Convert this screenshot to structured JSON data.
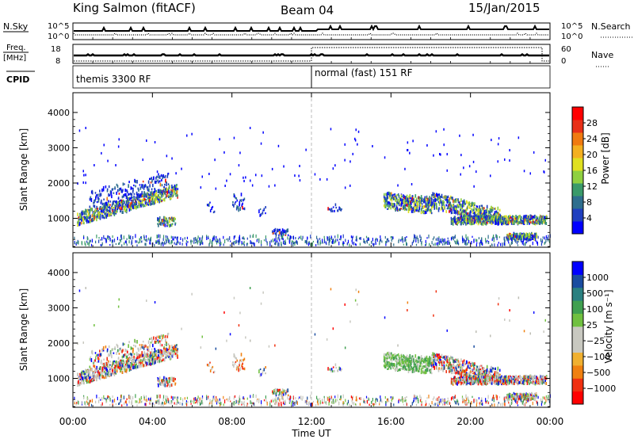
{
  "header": {
    "site": "King Salmon (fitACF)",
    "beam": "Beam 04",
    "date": "15/Jan/2015"
  },
  "strips": {
    "nsky_label": "N.Sky",
    "nsearch_label": "N.Search",
    "freq_label": "Freq.",
    "freq_unit": "[MHz]",
    "nave_label": "Nave",
    "cpid_label": "CPID",
    "nsky_ticks": [
      "10^5",
      "10^0"
    ],
    "nsearch_ticks": [
      "10^5",
      "10^0"
    ],
    "freq_ticks": [
      "18",
      "8"
    ],
    "nave_ticks": [
      "60",
      "0"
    ],
    "cpid_segments": [
      {
        "label": "themis 3300 RF",
        "start_hour": 0
      },
      {
        "label": "normal (fast) 151 RF",
        "start_hour": 12
      }
    ]
  },
  "chart_data": [
    {
      "type": "heatmap",
      "name": "power",
      "ylabel": "Slant Range [km]",
      "ylim": [
        180,
        4560
      ],
      "yticks": [
        1000,
        2000,
        3000,
        4000
      ],
      "xlim": [
        0,
        24
      ],
      "colorbar": {
        "label": "Power [dB]",
        "ticks": [
          "28",
          "24",
          "20",
          "16",
          "12",
          "8",
          "4"
        ],
        "colors": [
          "#0000ff",
          "#1f3fbf",
          "#2e6e8e",
          "#3a9a6a",
          "#8fd040",
          "#e0e020",
          "#f4b020",
          "#f07a10",
          "#e83018",
          "#ff0000"
        ]
      },
      "echo_regions": [
        {
          "t": [
            0.2,
            5.2
          ],
          "r": [
            850,
            2100
          ],
          "strength": "high"
        },
        {
          "t": [
            4.2,
            5.1
          ],
          "r": [
            750,
            1050
          ],
          "strength": "high"
        },
        {
          "t": [
            6.6,
            9.8
          ],
          "r": [
            900,
            1800
          ],
          "strength": "low"
        },
        {
          "t": [
            10.0,
            10.8
          ],
          "r": [
            500,
            700
          ],
          "strength": "low"
        },
        {
          "t": [
            12.8,
            13.6
          ],
          "r": [
            1100,
            1600
          ],
          "strength": "low"
        },
        {
          "t": [
            15.6,
            23.8
          ],
          "r": [
            600,
            1900
          ],
          "strength": "high"
        },
        {
          "t": [
            21.8,
            23.3
          ],
          "r": [
            350,
            650
          ],
          "strength": "high"
        }
      ]
    },
    {
      "type": "heatmap",
      "name": "velocity",
      "ylabel": "Slant Range [km]",
      "ylim": [
        180,
        4560
      ],
      "yticks": [
        1000,
        2000,
        3000,
        4000
      ],
      "xlim": [
        0,
        24
      ],
      "xticks": [
        "00:00",
        "04:00",
        "08:00",
        "12:00",
        "16:00",
        "20:00",
        "00:00"
      ],
      "xlabel": "Time UT",
      "colorbar": {
        "label": "Velocity [m s⁻¹]",
        "ticks": [
          "1000",
          "500",
          "100",
          "25",
          "−25",
          "−100",
          "−500",
          "−1000"
        ],
        "colors": [
          "#ff0000",
          "#f03010",
          "#f08010",
          "#f0b030",
          "#c8c8c0",
          "#c8c8c0",
          "#70c040",
          "#40a050",
          "#2a8080",
          "#1a4ca0",
          "#0000ff"
        ]
      }
    }
  ]
}
